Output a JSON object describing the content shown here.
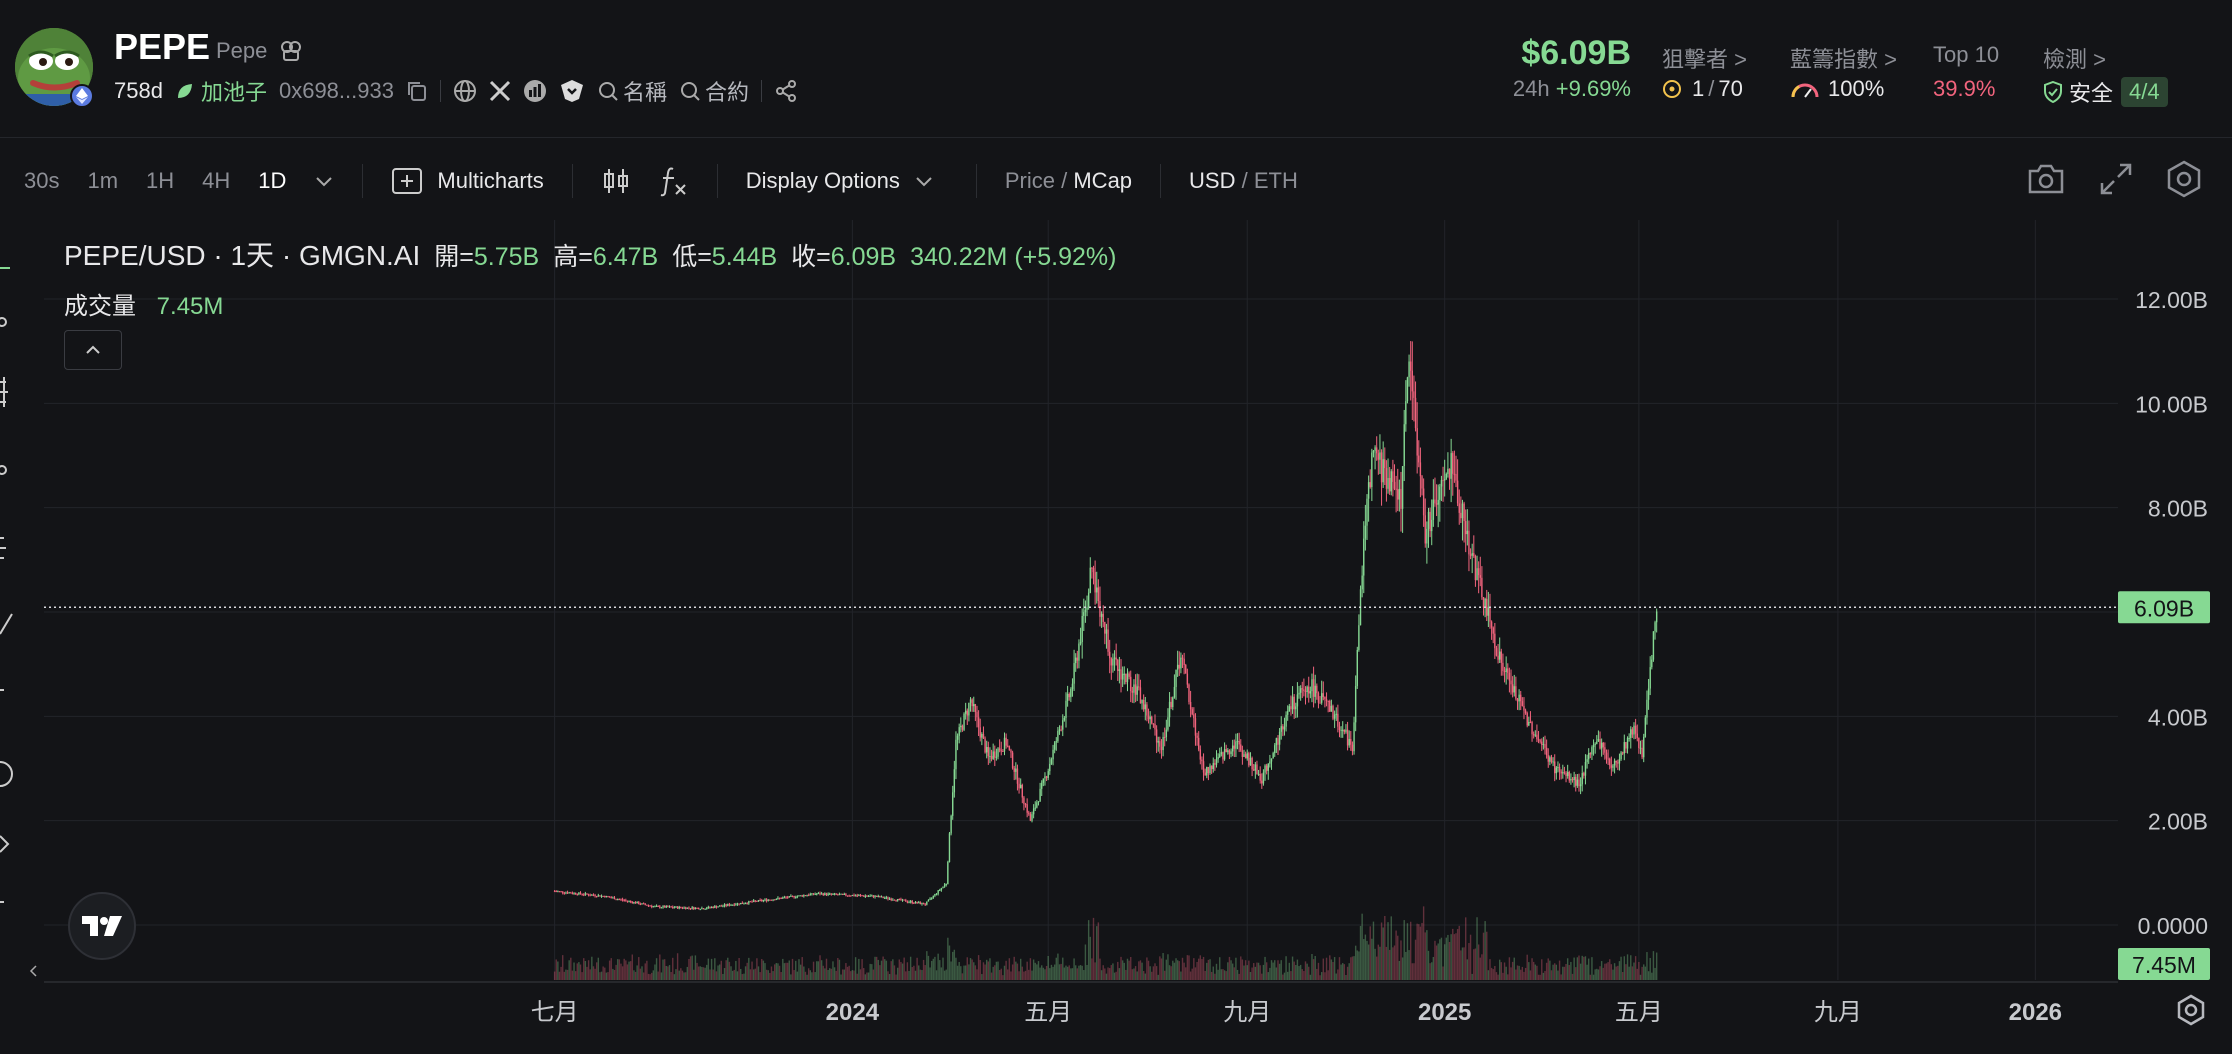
{
  "token": {
    "symbol": "PEPE",
    "name": "Pepe",
    "age": "758d",
    "pool_label": "加池子",
    "address": "0x698...933",
    "name_search": "名稱",
    "contract_search": "合約"
  },
  "stats": {
    "market_cap": "$6.09B",
    "change_period": "24h",
    "change_value": "+9.69%",
    "snipers_label": "狙擊者 >",
    "snipers_value": "1",
    "snipers_total": "70",
    "bluechip_label": "藍籌指數 >",
    "bluechip_value": "100%",
    "top10_label": "Top 10",
    "top10_value": "39.9%",
    "check_label": "檢測 >",
    "check_status": "安全",
    "check_score": "4/4"
  },
  "toolbar": {
    "intervals": [
      "30s",
      "1m",
      "1H",
      "4H",
      "1D"
    ],
    "active_interval": "1D",
    "multicharts": "Multicharts",
    "display_options": "Display Options",
    "price_label": "Price",
    "slash": "/",
    "mcap_label": "MCap",
    "usd_label": "USD",
    "eth_label": "ETH"
  },
  "legend": {
    "pair": "PEPE/USD · 1天 · GMGN.AI",
    "open_label": "開=",
    "open": "5.75B",
    "high_label": "高=",
    "high": "6.47B",
    "low_label": "低=",
    "low": "5.44B",
    "close_label": "收=",
    "close": "6.09B",
    "change": "340.22M (+5.92%)",
    "volume_label": "成交量",
    "volume": "7.45M"
  },
  "colors": {
    "up": "#86d993",
    "down": "#f2647d",
    "background": "#131417",
    "grid": "#22242a"
  },
  "chart_data": {
    "type": "candlestick",
    "x_tick_labels": [
      "七月",
      "2024",
      "五月",
      "九月",
      "2025",
      "五月",
      "九月",
      "2026"
    ],
    "y_tick_labels": [
      "0.0000",
      "2.00B",
      "4.00B",
      "6.00B",
      "8.00B",
      "10.00B",
      "12.00B"
    ],
    "ylim": [
      0,
      12
    ],
    "y_unit": "B",
    "x_range": [
      "2023-06-30",
      "2026-01-15"
    ],
    "current_price_label": "6.09B",
    "current_volume_label": "7.45M",
    "grid": true,
    "series": [
      {
        "name": "MCap",
        "points": [
          [
            "2023-07-01",
            0.65
          ],
          [
            "2023-08-01",
            0.55
          ],
          [
            "2023-09-01",
            0.35
          ],
          [
            "2023-10-01",
            0.32
          ],
          [
            "2023-11-01",
            0.45
          ],
          [
            "2023-12-10",
            0.6
          ],
          [
            "2024-01-15",
            0.55
          ],
          [
            "2024-02-15",
            0.4
          ],
          [
            "2024-02-28",
            0.8
          ],
          [
            "2024-03-05",
            3.5
          ],
          [
            "2024-03-14",
            4.3
          ],
          [
            "2024-03-25",
            3.2
          ],
          [
            "2024-04-05",
            3.5
          ],
          [
            "2024-04-20",
            2.0
          ],
          [
            "2024-05-01",
            3.0
          ],
          [
            "2024-05-15",
            4.5
          ],
          [
            "2024-05-28",
            6.8
          ],
          [
            "2024-06-10",
            5.0
          ],
          [
            "2024-06-25",
            4.5
          ],
          [
            "2024-07-10",
            3.4
          ],
          [
            "2024-07-22",
            5.2
          ],
          [
            "2024-08-05",
            2.9
          ],
          [
            "2024-08-25",
            3.5
          ],
          [
            "2024-09-10",
            2.8
          ],
          [
            "2024-09-28",
            4.2
          ],
          [
            "2024-10-10",
            4.6
          ],
          [
            "2024-10-25",
            4.0
          ],
          [
            "2024-11-05",
            3.4
          ],
          [
            "2024-11-12",
            7.5
          ],
          [
            "2024-11-18",
            9.0
          ],
          [
            "2024-12-05",
            8.2
          ],
          [
            "2024-12-10",
            11.0
          ],
          [
            "2024-12-20",
            7.5
          ],
          [
            "2025-01-05",
            8.8
          ],
          [
            "2025-01-20",
            6.8
          ],
          [
            "2025-02-05",
            5.0
          ],
          [
            "2025-02-20",
            4.0
          ],
          [
            "2025-03-10",
            3.0
          ],
          [
            "2025-03-25",
            2.7
          ],
          [
            "2025-04-05",
            3.6
          ],
          [
            "2025-04-15",
            3.0
          ],
          [
            "2025-04-28",
            3.8
          ],
          [
            "2025-05-03",
            3.3
          ],
          [
            "2025-05-08",
            4.8
          ],
          [
            "2025-05-12",
            6.09
          ]
        ]
      }
    ]
  }
}
